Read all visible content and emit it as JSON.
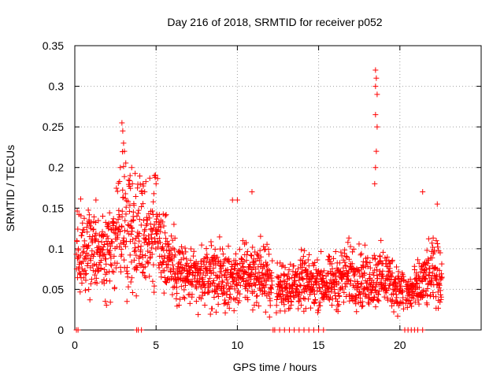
{
  "chart_data": {
    "type": "scatter",
    "title": "Day 216 of 2018, SRMTID for receiver p052",
    "xlabel": "GPS time / hours",
    "ylabel": "SRMTID / TECUs",
    "xlim": [
      0,
      25
    ],
    "ylim": [
      0,
      0.35
    ],
    "x_ticks": [
      "0",
      "5",
      "10",
      "15",
      "20"
    ],
    "y_ticks": [
      "0",
      "0.05",
      "0.1",
      "0.15",
      "0.2",
      "0.25",
      "0.3",
      "0.35"
    ],
    "x_tick_values": [
      0,
      5,
      10,
      15,
      20
    ],
    "y_tick_values": [
      0,
      0.05,
      0.1,
      0.15,
      0.2,
      0.25,
      0.3,
      0.35
    ],
    "grid": true,
    "marker": "+",
    "color": "#ff0000",
    "series": [
      {
        "name": "SRMTID",
        "trend": [
          [
            0.1,
            0.1
          ],
          [
            0.5,
            0.09
          ],
          [
            1.0,
            0.1
          ],
          [
            1.5,
            0.095
          ],
          [
            2.0,
            0.1
          ],
          [
            2.5,
            0.12
          ],
          [
            3.0,
            0.14
          ],
          [
            3.5,
            0.13
          ],
          [
            4.0,
            0.12
          ],
          [
            4.5,
            0.12
          ],
          [
            5.0,
            0.12
          ],
          [
            5.5,
            0.1
          ],
          [
            6.0,
            0.08
          ],
          [
            6.5,
            0.07
          ],
          [
            7.0,
            0.065
          ],
          [
            7.5,
            0.06
          ],
          [
            8.0,
            0.065
          ],
          [
            8.5,
            0.07
          ],
          [
            9.0,
            0.065
          ],
          [
            9.5,
            0.06
          ],
          [
            10.0,
            0.065
          ],
          [
            10.5,
            0.07
          ],
          [
            11.0,
            0.068
          ],
          [
            11.5,
            0.07
          ],
          [
            12.0,
            0.06
          ],
          [
            12.5,
            0.05
          ],
          [
            13.0,
            0.055
          ],
          [
            13.5,
            0.055
          ],
          [
            14.0,
            0.06
          ],
          [
            14.5,
            0.055
          ],
          [
            15.0,
            0.06
          ],
          [
            15.5,
            0.055
          ],
          [
            16.0,
            0.06
          ],
          [
            16.5,
            0.065
          ],
          [
            17.0,
            0.07
          ],
          [
            17.5,
            0.065
          ],
          [
            18.0,
            0.06
          ],
          [
            18.5,
            0.065
          ],
          [
            19.0,
            0.065
          ],
          [
            19.5,
            0.06
          ],
          [
            20.0,
            0.05
          ],
          [
            20.5,
            0.045
          ],
          [
            21.0,
            0.05
          ],
          [
            21.5,
            0.06
          ],
          [
            22.0,
            0.07
          ],
          [
            22.6,
            0.065
          ]
        ],
        "peaks": [
          [
            2.9,
            0.255
          ],
          [
            2.95,
            0.245
          ],
          [
            3.0,
            0.23
          ],
          [
            3.05,
            0.22
          ],
          [
            3.5,
            0.2
          ],
          [
            3.4,
            0.19
          ],
          [
            4.2,
            0.18
          ],
          [
            4.3,
            0.17
          ],
          [
            4.9,
            0.19
          ],
          [
            5.0,
            0.18
          ],
          [
            9.7,
            0.16
          ],
          [
            10.0,
            0.16
          ],
          [
            10.9,
            0.17
          ],
          [
            18.5,
            0.32
          ],
          [
            18.55,
            0.31
          ],
          [
            18.5,
            0.3
          ],
          [
            18.6,
            0.29
          ],
          [
            18.5,
            0.265
          ],
          [
            18.6,
            0.25
          ],
          [
            18.55,
            0.22
          ],
          [
            18.5,
            0.2
          ],
          [
            18.45,
            0.18
          ],
          [
            21.4,
            0.17
          ],
          [
            22.3,
            0.155
          ],
          [
            1.3,
            0.16
          ]
        ],
        "zeros": [
          0.1,
          0.2,
          3.8,
          3.9,
          4.1,
          12.2,
          12.3,
          12.6,
          12.9,
          13.2,
          13.5,
          13.8,
          14.1,
          14.4,
          14.7,
          15.0,
          15.3,
          20.3,
          20.5,
          20.7,
          20.9,
          21.1,
          21.4
        ]
      }
    ]
  }
}
